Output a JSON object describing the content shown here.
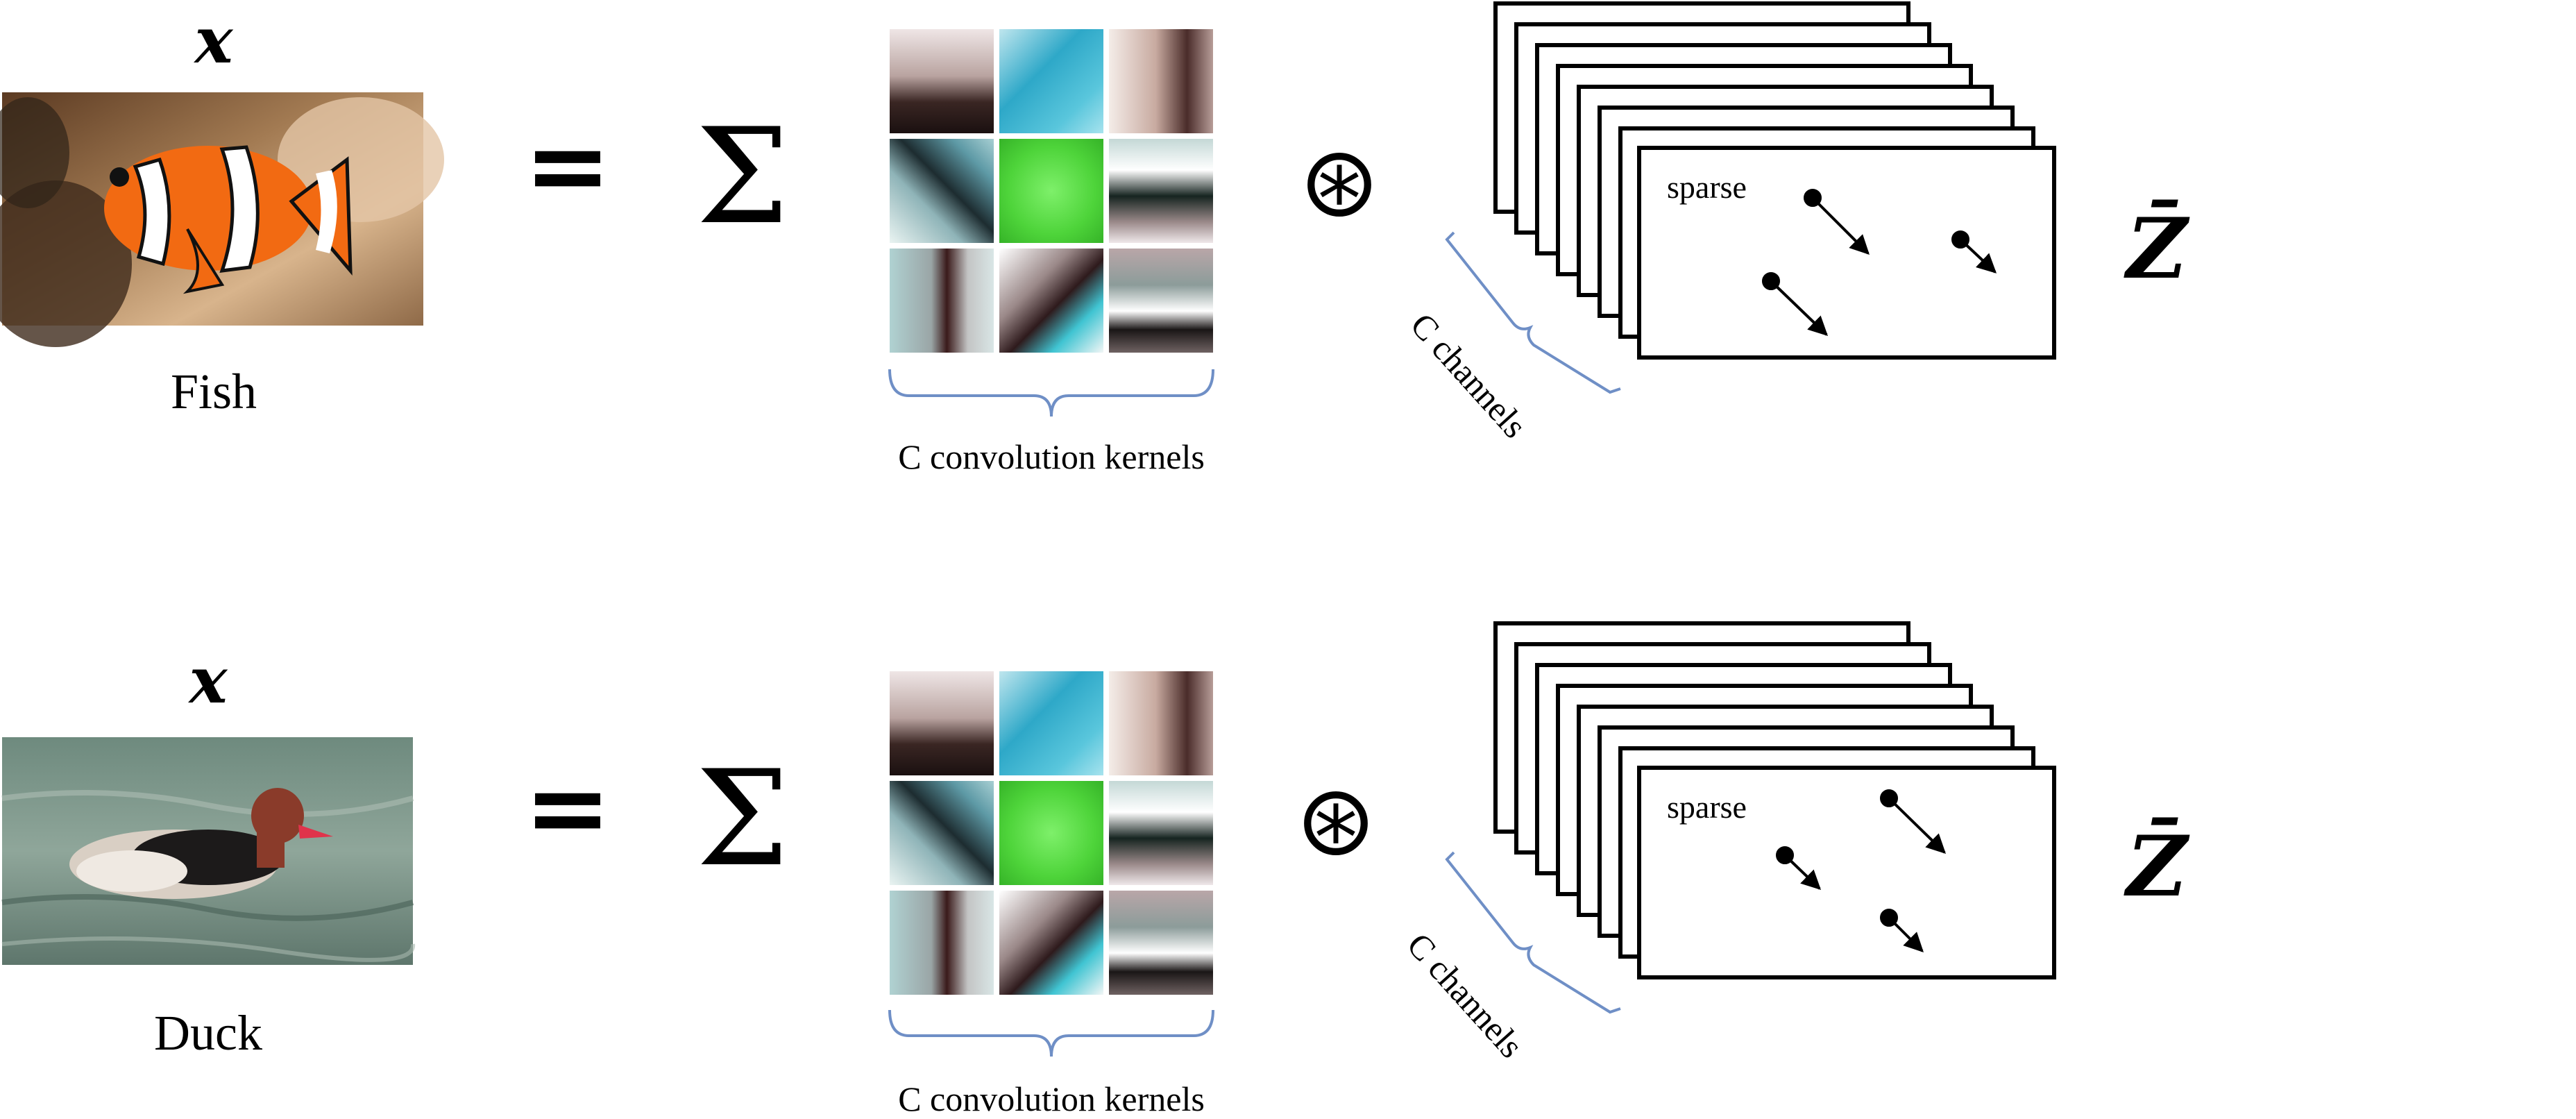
{
  "rows": [
    {
      "input_var": "x",
      "image_label": "Fish",
      "equals": "=",
      "sum": "Σ",
      "conv_op": "⊛",
      "kernels_label": "C convolution kernels",
      "channels_label": "C channels",
      "sparse_label": "sparse",
      "output_var": "Z̄"
    },
    {
      "input_var": "x",
      "image_label": "Duck",
      "equals": "=",
      "sum": "Σ",
      "conv_op": "⊛",
      "kernels_label": "C convolution kernels",
      "channels_label": "C channels",
      "sparse_label": "sparse",
      "output_var": "Z̄"
    }
  ],
  "colors": {
    "brace": "#6f8fc6",
    "ink": "#000000",
    "kernel_grid_bg": "#ffffff"
  }
}
